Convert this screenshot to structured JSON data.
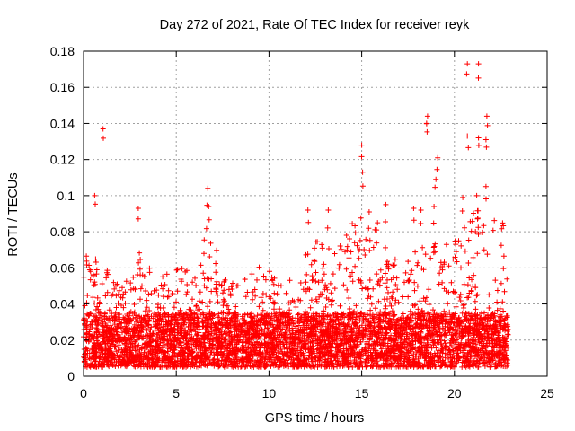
{
  "chart_data": {
    "type": "scatter",
    "title": "Day 272 of 2021, Rate Of TEC Index for receiver reyk",
    "xlabel": "GPS time / hours",
    "ylabel": "ROTI / TECUs",
    "xlim": [
      0,
      25
    ],
    "ylim": [
      0,
      0.18
    ],
    "x_ticks": [
      "0",
      "5",
      "10",
      "15",
      "20",
      "25"
    ],
    "y_ticks": [
      "0",
      "0.02",
      "0.04",
      "0.06",
      "0.08",
      "0.1",
      "0.12",
      "0.14",
      "0.16",
      "0.18"
    ],
    "grid": true,
    "legend": "none",
    "marker": "plus",
    "color": "#ff0000",
    "series": [
      {
        "x_range": [
          0.0,
          22.9
        ],
        "baseline_band": [
          0.005,
          0.035
        ],
        "envelope": [
          [
            0.0,
            0.078
          ],
          [
            0.5,
            0.072
          ],
          [
            1.0,
            0.065
          ],
          [
            1.5,
            0.055
          ],
          [
            2.0,
            0.05
          ],
          [
            3.0,
            0.07
          ],
          [
            4.0,
            0.055
          ],
          [
            5.0,
            0.062
          ],
          [
            6.0,
            0.058
          ],
          [
            6.8,
            0.09
          ],
          [
            7.5,
            0.055
          ],
          [
            8.5,
            0.052
          ],
          [
            9.5,
            0.062
          ],
          [
            10.5,
            0.055
          ],
          [
            11.5,
            0.06
          ],
          [
            12.5,
            0.075
          ],
          [
            13.5,
            0.07
          ],
          [
            14.5,
            0.085
          ],
          [
            15.0,
            0.09
          ],
          [
            16.0,
            0.085
          ],
          [
            17.0,
            0.065
          ],
          [
            18.0,
            0.07
          ],
          [
            19.0,
            0.075
          ],
          [
            20.0,
            0.08
          ],
          [
            21.0,
            0.09
          ],
          [
            21.5,
            0.1
          ],
          [
            22.0,
            0.09
          ],
          [
            22.9,
            0.085
          ]
        ],
        "outliers": [
          [
            0.6,
            0.1
          ],
          [
            1.05,
            0.137
          ],
          [
            6.7,
            0.104
          ],
          [
            15.0,
            0.128
          ],
          [
            15.05,
            0.113
          ],
          [
            18.55,
            0.144
          ],
          [
            18.5,
            0.14
          ],
          [
            19.1,
            0.121
          ],
          [
            19.0,
            0.109
          ],
          [
            20.7,
            0.133
          ],
          [
            20.7,
            0.173
          ],
          [
            21.3,
            0.173
          ],
          [
            21.3,
            0.132
          ],
          [
            21.75,
            0.144
          ],
          [
            21.7,
            0.131
          ],
          [
            21.7,
            0.105
          ],
          [
            2.95,
            0.093
          ],
          [
            6.75,
            0.094
          ],
          [
            12.1,
            0.092
          ],
          [
            13.2,
            0.092
          ],
          [
            15.4,
            0.091
          ],
          [
            16.3,
            0.095
          ],
          [
            17.8,
            0.093
          ],
          [
            18.2,
            0.092
          ],
          [
            18.9,
            0.094
          ],
          [
            20.45,
            0.099
          ],
          [
            21.2,
            0.1
          ]
        ]
      }
    ]
  }
}
